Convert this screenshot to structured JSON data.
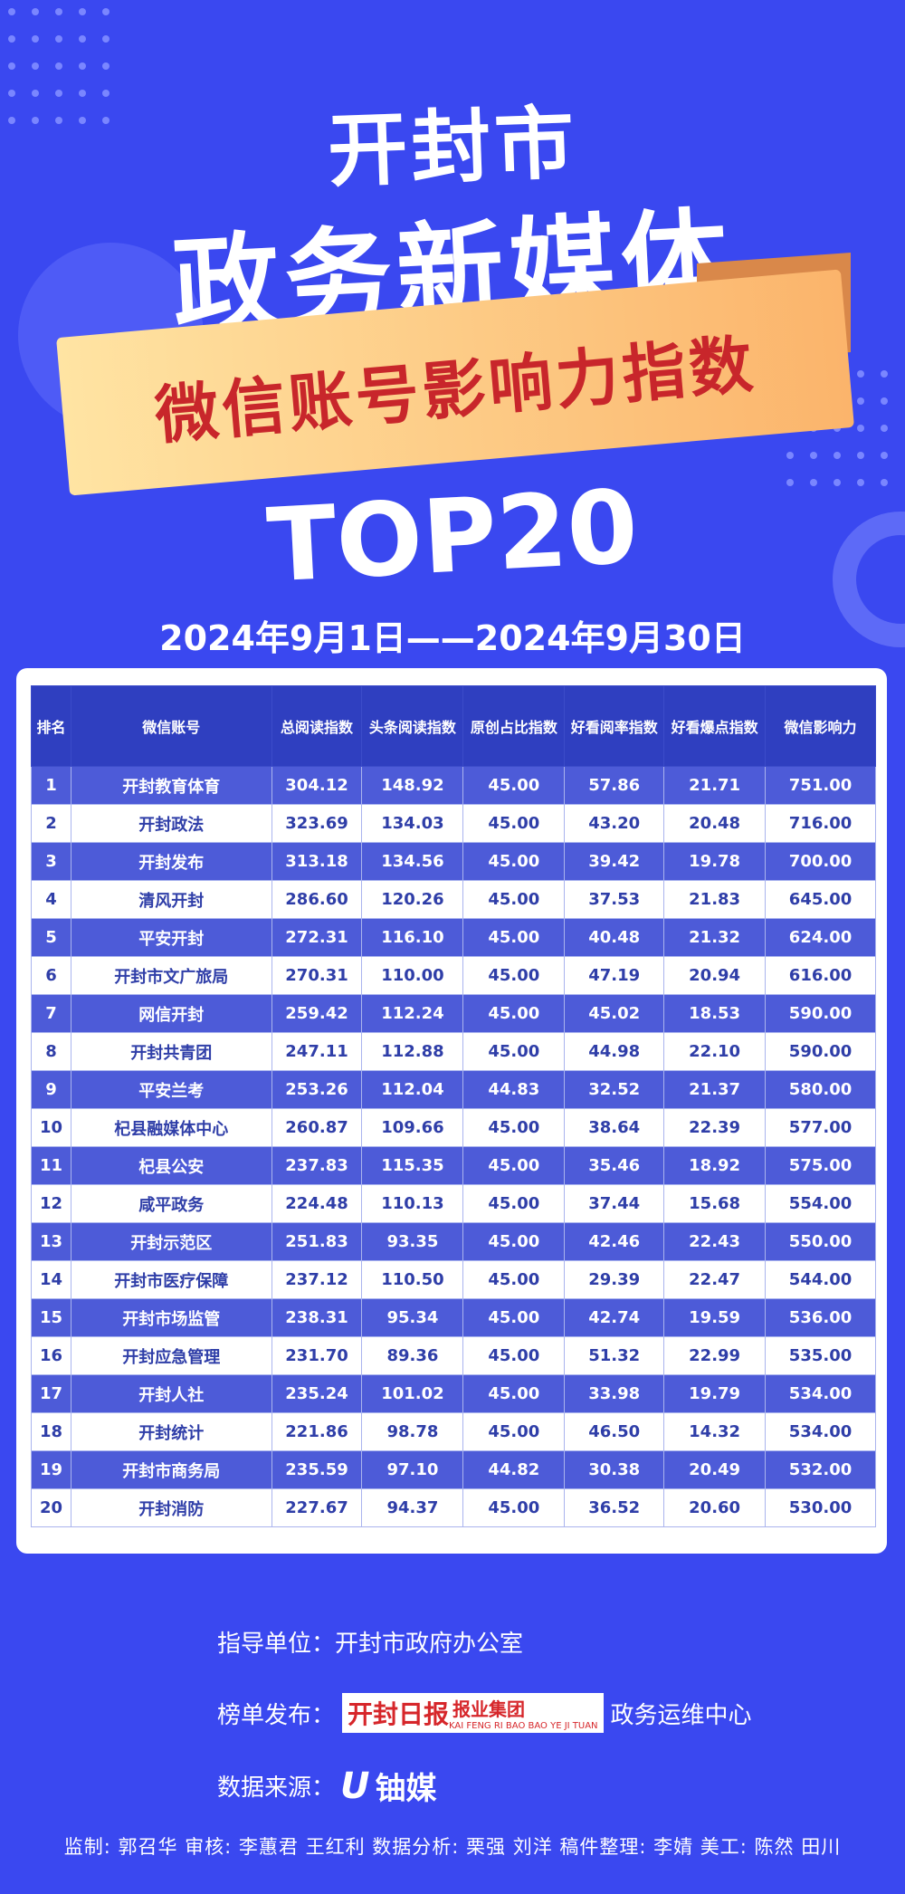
{
  "header": {
    "city": "开封市",
    "title": "政务新媒体",
    "ribbon": "微信账号影响力指数",
    "top": "TOP20",
    "date_range": "2024年9月1日——2024年9月30日"
  },
  "table": {
    "columns": [
      "排名",
      "微信账号",
      "总阅读指数",
      "头条阅读指数",
      "原创占比指数",
      "好看阅率指数",
      "好看爆点指数",
      "微信影响力"
    ],
    "rows": [
      [
        "1",
        "开封教育体育",
        "304.12",
        "148.92",
        "45.00",
        "57.86",
        "21.71",
        "751.00"
      ],
      [
        "2",
        "开封政法",
        "323.69",
        "134.03",
        "45.00",
        "43.20",
        "20.48",
        "716.00"
      ],
      [
        "3",
        "开封发布",
        "313.18",
        "134.56",
        "45.00",
        "39.42",
        "19.78",
        "700.00"
      ],
      [
        "4",
        "清风开封",
        "286.60",
        "120.26",
        "45.00",
        "37.53",
        "21.83",
        "645.00"
      ],
      [
        "5",
        "平安开封",
        "272.31",
        "116.10",
        "45.00",
        "40.48",
        "21.32",
        "624.00"
      ],
      [
        "6",
        "开封市文广旅局",
        "270.31",
        "110.00",
        "45.00",
        "47.19",
        "20.94",
        "616.00"
      ],
      [
        "7",
        "网信开封",
        "259.42",
        "112.24",
        "45.00",
        "45.02",
        "18.53",
        "590.00"
      ],
      [
        "8",
        "开封共青团",
        "247.11",
        "112.88",
        "45.00",
        "44.98",
        "22.10",
        "590.00"
      ],
      [
        "9",
        "平安兰考",
        "253.26",
        "112.04",
        "44.83",
        "32.52",
        "21.37",
        "580.00"
      ],
      [
        "10",
        "杞县融媒体中心",
        "260.87",
        "109.66",
        "45.00",
        "38.64",
        "22.39",
        "577.00"
      ],
      [
        "11",
        "杞县公安",
        "237.83",
        "115.35",
        "45.00",
        "35.46",
        "18.92",
        "575.00"
      ],
      [
        "12",
        "咸平政务",
        "224.48",
        "110.13",
        "45.00",
        "37.44",
        "15.68",
        "554.00"
      ],
      [
        "13",
        "开封示范区",
        "251.83",
        "93.35",
        "45.00",
        "42.46",
        "22.43",
        "550.00"
      ],
      [
        "14",
        "开封市医疗保障",
        "237.12",
        "110.50",
        "45.00",
        "29.39",
        "22.47",
        "544.00"
      ],
      [
        "15",
        "开封市场监管",
        "238.31",
        "95.34",
        "45.00",
        "42.74",
        "19.59",
        "536.00"
      ],
      [
        "16",
        "开封应急管理",
        "231.70",
        "89.36",
        "45.00",
        "51.32",
        "22.99",
        "535.00"
      ],
      [
        "17",
        "开封人社",
        "235.24",
        "101.02",
        "45.00",
        "33.98",
        "19.79",
        "534.00"
      ],
      [
        "18",
        "开封统计",
        "221.86",
        "98.78",
        "45.00",
        "46.50",
        "14.32",
        "534.00"
      ],
      [
        "19",
        "开封市商务局",
        "235.59",
        "97.10",
        "44.82",
        "30.38",
        "20.49",
        "532.00"
      ],
      [
        "20",
        "开封消防",
        "227.67",
        "94.37",
        "45.00",
        "36.52",
        "20.60",
        "530.00"
      ]
    ]
  },
  "footer": {
    "guide_label": "指导单位：",
    "guide_value": "开封市政府办公室",
    "publish_label": "榜单发布：",
    "publisher_logo_mark": "开封日报",
    "publisher_logo_name": "报业集团",
    "publisher_logo_sub": "KAI FENG RI BAO BAO YE JI TUAN",
    "publisher_value": "政务运维中心",
    "source_label": "数据来源：",
    "source_mark": "U",
    "source_value": "铀媒",
    "credits": "监制: 郭召华    审核: 李蕙君  王红利    数据分析: 栗强  刘洋    稿件整理: 李婧    美工: 陈然  田川"
  },
  "colors": {
    "background": "#3a48f0",
    "header_row": "#2f3fc0",
    "dark_row": "#4d5bd8",
    "light_row_text": "#2f3ea8",
    "ribbon": "#fbb46b",
    "ribbon_text": "#c8262b"
  }
}
